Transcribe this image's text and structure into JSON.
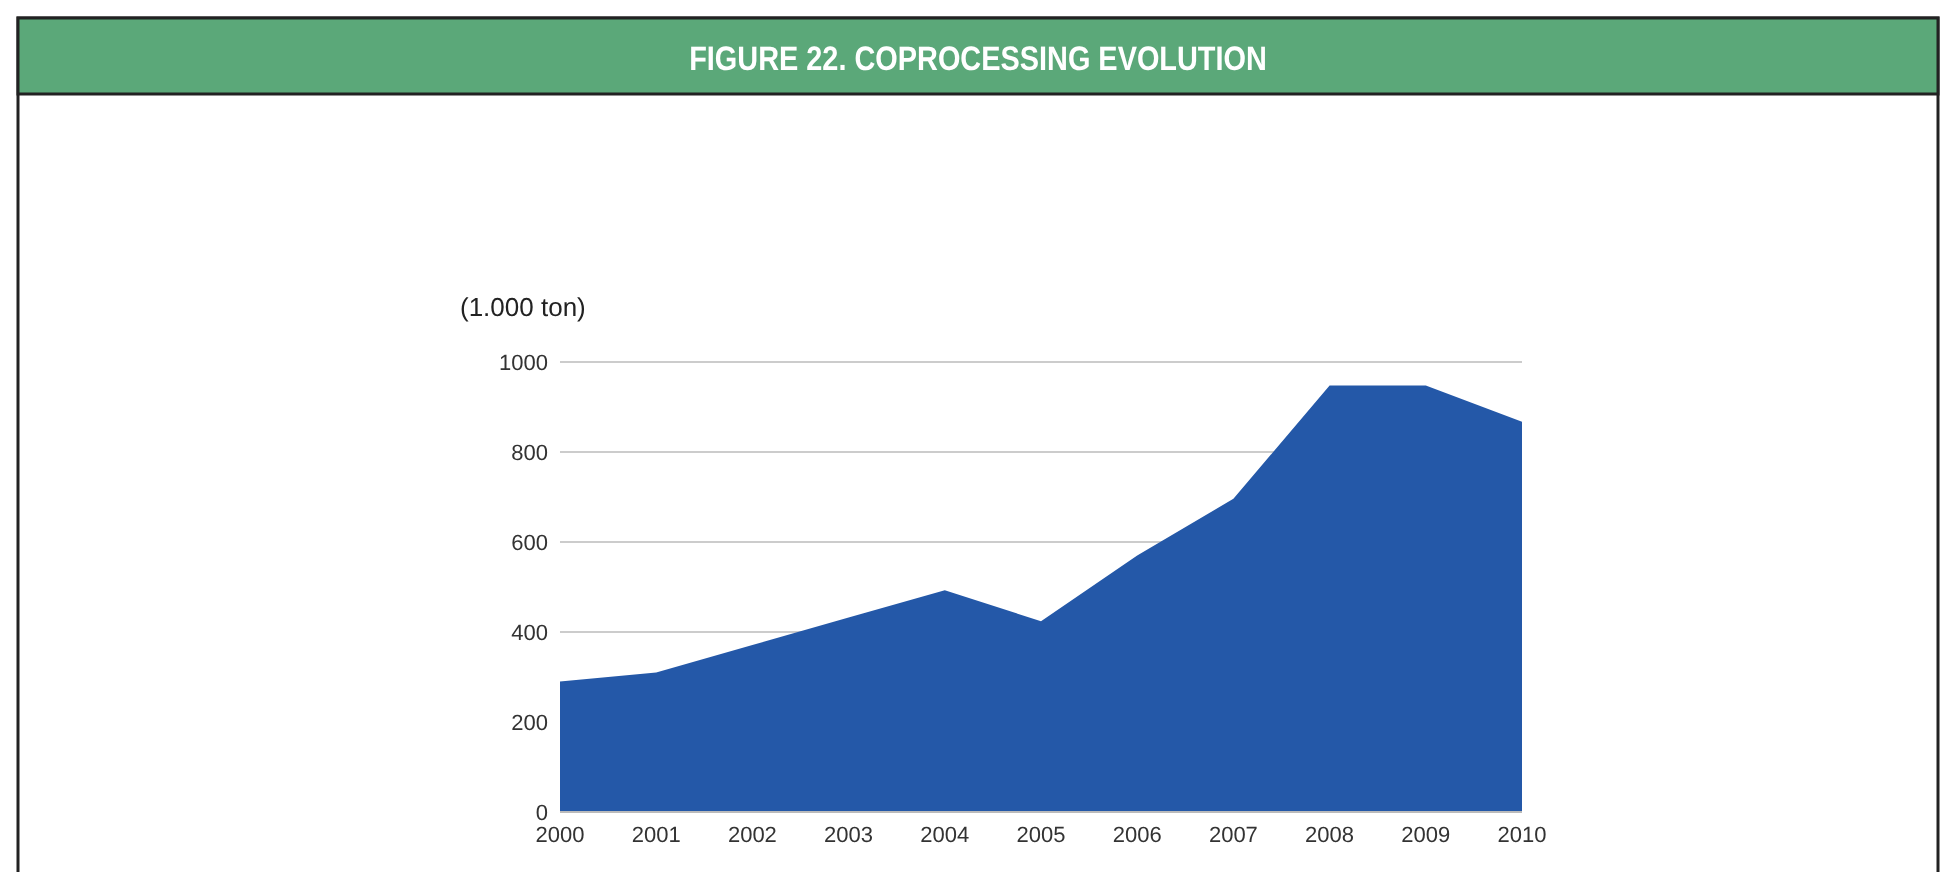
{
  "chart_data": {
    "type": "area",
    "title": "FIGURE 22. COPROCESSING EVOLUTION",
    "ylabel": "(1.000 ton)",
    "categories": [
      "2000",
      "2001",
      "2002",
      "2003",
      "2004",
      "2005",
      "2006",
      "2007",
      "2008",
      "2009",
      "2010"
    ],
    "series": [
      {
        "color": "#2458a8",
        "values": [
          290,
          310,
          371,
          432,
          493,
          424,
          570,
          696,
          948,
          948,
          867
        ]
      }
    ],
    "ylim": [
      0,
      1000
    ],
    "yticks": [
      0,
      200,
      400,
      600,
      800,
      1000
    ],
    "grid": "y"
  }
}
